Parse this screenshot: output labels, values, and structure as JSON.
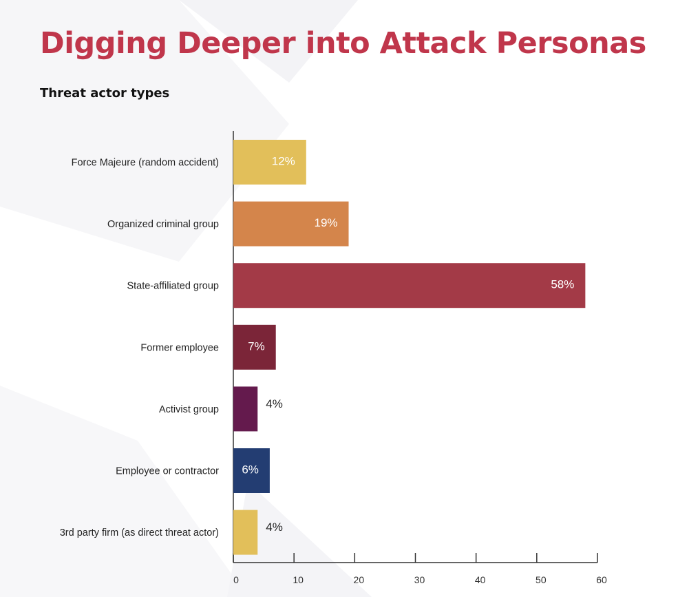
{
  "title": "Digging Deeper into Attack Personas",
  "subtitle": "Threat actor types",
  "colors": {
    "title": "#c0364b",
    "axis": "#333333"
  },
  "chart_data": {
    "type": "bar",
    "orientation": "horizontal",
    "title": "Threat actor types",
    "xlabel": "",
    "ylabel": "",
    "xlim": [
      0,
      60
    ],
    "xticks": [
      0,
      10,
      20,
      30,
      40,
      50,
      60
    ],
    "grid": false,
    "categories": [
      "Force Majeure (random accident)",
      "Organized criminal group",
      "State-affiliated group",
      "Former employee",
      "Activist group",
      "Employee or contractor",
      "3rd party firm (as direct threat actor)"
    ],
    "values": [
      12,
      19,
      58,
      7,
      4,
      6,
      4
    ],
    "labels": [
      "12%",
      "19%",
      "58%",
      "7%",
      "4%",
      "6%",
      "4%"
    ],
    "bar_colors": [
      "#e2bf5a",
      "#d4854b",
      "#a33a47",
      "#7b2538",
      "#641a4d",
      "#233d72",
      "#e2bf5a"
    ]
  }
}
